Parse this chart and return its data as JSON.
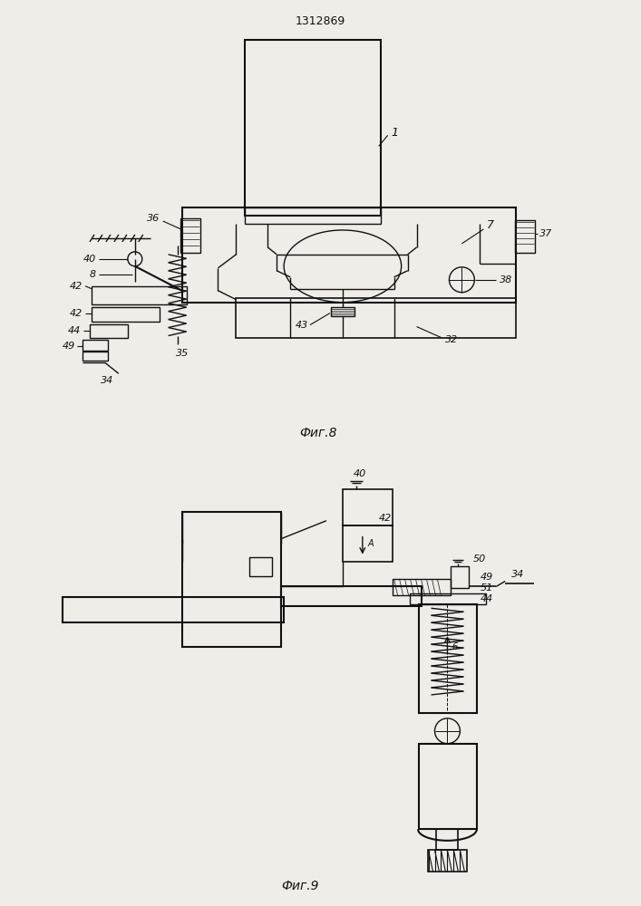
{
  "title": "1312869",
  "fig8_label": "Фиг.8",
  "fig9_label": "Фиг.9",
  "bg_color": "#f0ede8",
  "line_color": "#111111"
}
